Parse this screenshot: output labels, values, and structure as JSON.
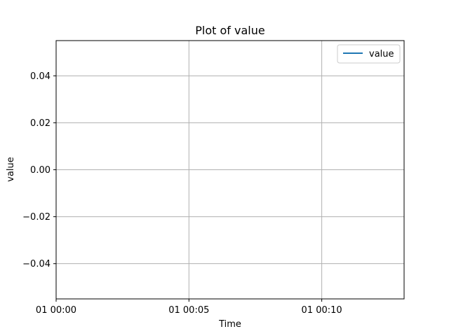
{
  "chart_data": {
    "type": "line",
    "title": "Plot of value",
    "xlabel": "Time",
    "ylabel": "value",
    "x_ticks": [
      "01 00:00",
      "01 00:05",
      "01 00:10"
    ],
    "y_ticks": [
      "0.04",
      "0.02",
      "0.00",
      "−0.02",
      "−0.04"
    ],
    "y_tick_values": [
      0.04,
      0.02,
      0.0,
      -0.02,
      -0.04
    ],
    "x_tick_minutes": [
      0,
      5,
      10
    ],
    "xlim_minutes": [
      0,
      13.1
    ],
    "ylim": [
      -0.055,
      0.055
    ],
    "series": [
      {
        "name": "value",
        "values": [],
        "color": "#1f77b4"
      }
    ],
    "grid": true,
    "legend_position": "top-right"
  }
}
